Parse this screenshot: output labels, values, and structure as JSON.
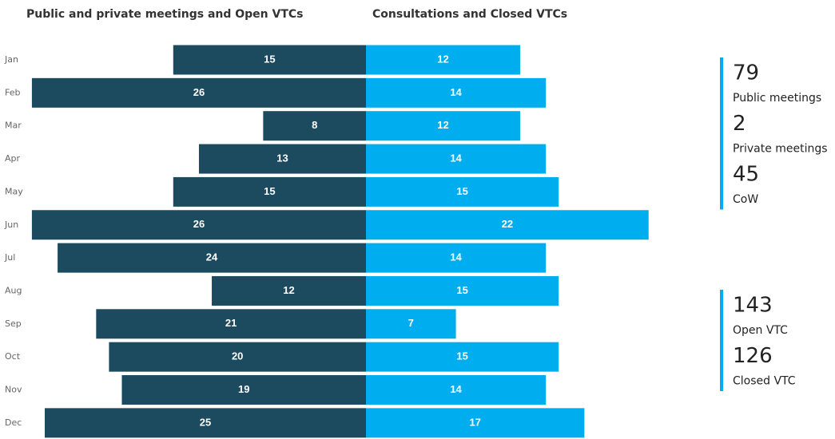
{
  "chart_data": {
    "type": "butterfly",
    "categories": [
      "Jan",
      "Feb",
      "Mar",
      "Apr",
      "May",
      "Jun",
      "Jul",
      "Aug",
      "Sep",
      "Oct",
      "Nov",
      "Dec"
    ],
    "series": [
      {
        "name": "Public and private meetings and Open VTCs",
        "color": "#1c4a5e",
        "values": [
          15,
          26,
          8,
          13,
          15,
          26,
          24,
          12,
          21,
          20,
          19,
          25
        ]
      },
      {
        "name": "Consultations and Closed VTCs",
        "color": "#00aeef",
        "values": [
          12,
          14,
          12,
          14,
          15,
          22,
          14,
          15,
          7,
          15,
          14,
          17
        ]
      }
    ]
  },
  "kpis": [
    {
      "color": "#00aeef",
      "items": [
        {
          "value": 79,
          "label": "Public meetings"
        },
        {
          "value": 2,
          "label": "Private meetings"
        },
        {
          "value": 45,
          "label": "CoW"
        }
      ]
    },
    {
      "color": "#00aeef",
      "items": [
        {
          "value": 143,
          "label": "Open VTC"
        },
        {
          "value": 126,
          "label": "Closed VTC"
        }
      ]
    }
  ]
}
